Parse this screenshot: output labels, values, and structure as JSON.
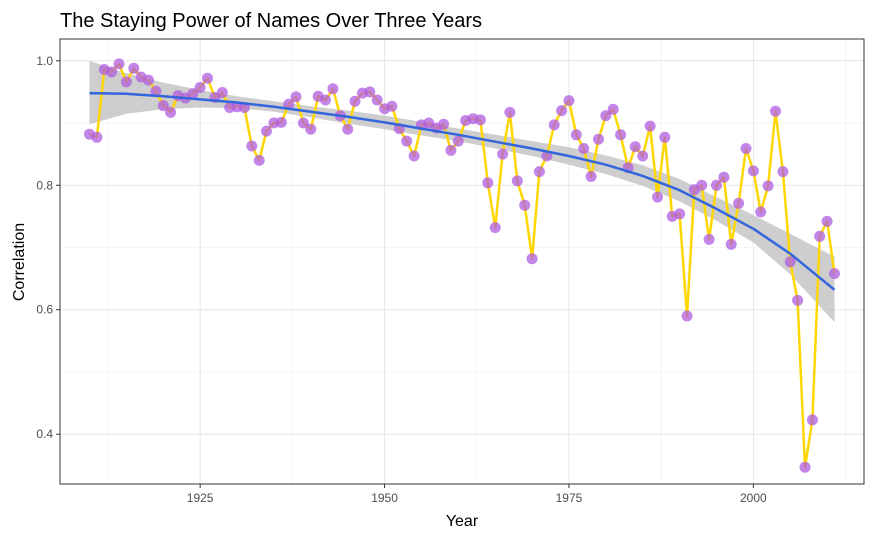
{
  "chart_data": {
    "type": "line",
    "title": "The Staying Power of Names Over Three Years",
    "xlabel": "Year",
    "ylabel": "Correlation",
    "xlim": [
      1906,
      2015
    ],
    "ylim": [
      0.32,
      1.035
    ],
    "x_ticks": [
      1925,
      1950,
      1975,
      2000
    ],
    "y_ticks": [
      0.4,
      0.6,
      0.8,
      1.0
    ],
    "y_tick_labels": [
      "0.4",
      "0.6",
      "0.8",
      "1.0"
    ],
    "grid": true,
    "legend": "none",
    "series": [
      {
        "type": "line+scatter",
        "line_color": "#FFD700",
        "point_color": "#B05CE0",
        "x": [
          1910,
          1911,
          1912,
          1913,
          1914,
          1915,
          1916,
          1917,
          1918,
          1919,
          1920,
          1921,
          1922,
          1923,
          1924,
          1925,
          1926,
          1927,
          1928,
          1929,
          1930,
          1931,
          1932,
          1933,
          1934,
          1935,
          1936,
          1937,
          1938,
          1939,
          1940,
          1941,
          1942,
          1943,
          1944,
          1945,
          1946,
          1947,
          1948,
          1949,
          1950,
          1951,
          1952,
          1953,
          1954,
          1955,
          1956,
          1957,
          1958,
          1959,
          1960,
          1961,
          1962,
          1963,
          1964,
          1965,
          1966,
          1967,
          1968,
          1969,
          1970,
          1971,
          1972,
          1973,
          1974,
          1975,
          1976,
          1977,
          1978,
          1979,
          1980,
          1981,
          1982,
          1983,
          1984,
          1985,
          1986,
          1987,
          1988,
          1989,
          1990,
          1991,
          1992,
          1993,
          1994,
          1995,
          1996,
          1997,
          1998,
          1999,
          2000,
          2001,
          2002,
          2003,
          2004,
          2005,
          2006,
          2007,
          2008,
          2009,
          2010,
          2011
        ],
        "y": [
          0.882,
          0.877,
          0.986,
          0.982,
          0.995,
          0.966,
          0.988,
          0.974,
          0.969,
          0.951,
          0.928,
          0.917,
          0.944,
          0.94,
          0.947,
          0.957,
          0.972,
          0.941,
          0.949,
          0.925,
          0.926,
          0.925,
          0.863,
          0.84,
          0.887,
          0.9,
          0.901,
          0.93,
          0.942,
          0.9,
          0.89,
          0.943,
          0.937,
          0.955,
          0.912,
          0.89,
          0.935,
          0.948,
          0.95,
          0.937,
          0.923,
          0.927,
          0.891,
          0.871,
          0.847,
          0.897,
          0.9,
          0.892,
          0.898,
          0.856,
          0.871,
          0.904,
          0.907,
          0.905,
          0.804,
          0.732,
          0.85,
          0.917,
          0.807,
          0.768,
          0.682,
          0.822,
          0.847,
          0.897,
          0.92,
          0.936,
          0.881,
          0.859,
          0.814,
          0.874,
          0.912,
          0.922,
          0.881,
          0.828,
          0.862,
          0.847,
          0.895,
          0.781,
          0.877,
          0.75,
          0.754,
          0.59,
          0.793,
          0.8,
          0.713,
          0.8,
          0.813,
          0.705,
          0.771,
          0.859,
          0.823,
          0.757,
          0.799,
          0.919,
          0.822,
          0.677,
          0.615,
          0.347,
          0.423,
          0.718,
          0.742,
          0.658
        ]
      },
      {
        "type": "smooth",
        "line_color": "#3366DD",
        "ribbon_color": "#BEBEBE",
        "x": [
          1910,
          1915,
          1920,
          1925,
          1930,
          1935,
          1940,
          1945,
          1950,
          1955,
          1960,
          1965,
          1970,
          1975,
          1980,
          1985,
          1990,
          1995,
          2000,
          2005,
          2011
        ],
        "y": [
          0.948,
          0.947,
          0.943,
          0.938,
          0.933,
          0.926,
          0.918,
          0.91,
          0.901,
          0.891,
          0.881,
          0.87,
          0.859,
          0.847,
          0.833,
          0.815,
          0.792,
          0.762,
          0.73,
          0.69,
          0.632
        ],
        "lower": [
          0.898,
          0.915,
          0.922,
          0.925,
          0.924,
          0.918,
          0.909,
          0.899,
          0.89,
          0.88,
          0.871,
          0.859,
          0.847,
          0.833,
          0.818,
          0.799,
          0.774,
          0.743,
          0.708,
          0.657,
          0.58
        ],
        "upper": [
          1.0,
          0.98,
          0.965,
          0.953,
          0.943,
          0.935,
          0.927,
          0.92,
          0.912,
          0.902,
          0.891,
          0.881,
          0.871,
          0.861,
          0.848,
          0.832,
          0.81,
          0.781,
          0.752,
          0.722,
          0.685
        ]
      }
    ]
  }
}
